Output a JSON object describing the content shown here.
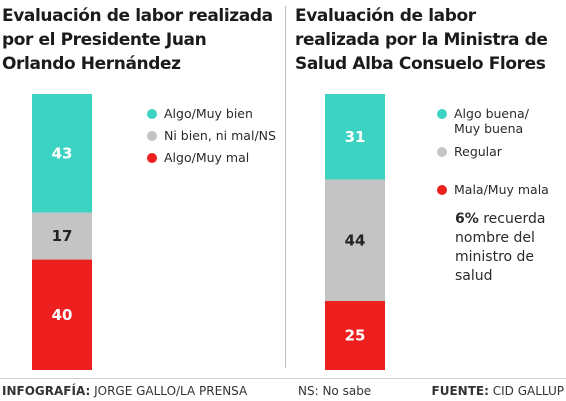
{
  "chart_data": [
    {
      "type": "bar",
      "stacked": true,
      "title": "Evaluación de labor realizada por el Presidente Juan Orlando Hernández",
      "categories": [
        ""
      ],
      "series": [
        {
          "name": "Algo/Muy bien",
          "values": [
            43
          ],
          "color": "#3dd3c2"
        },
        {
          "name": "Ni bien, ni mal/NS",
          "values": [
            17
          ],
          "color": "#c4c4c4"
        },
        {
          "name": "Algo/Muy mal",
          "values": [
            40
          ],
          "color": "#ee1f1f"
        }
      ],
      "ylim": [
        0,
        100
      ],
      "legend": "right"
    },
    {
      "type": "bar",
      "stacked": true,
      "title": "Evaluación de labor realizada por la Ministra de Salud Alba Consuelo Flores",
      "categories": [
        ""
      ],
      "series": [
        {
          "name": "Algo buena/ Muy buena",
          "values": [
            31
          ],
          "color": "#3dd3c2"
        },
        {
          "name": "Regular",
          "values": [
            44
          ],
          "color": "#c4c4c4"
        },
        {
          "name": "Mala/Muy mala",
          "values": [
            25
          ],
          "color": "#ee1f1f"
        }
      ],
      "ylim": [
        0,
        100
      ],
      "legend": "right"
    }
  ],
  "note": {
    "value": "6%",
    "text": "recuerda nombre del ministro de salud"
  },
  "footer": {
    "credit_label": "INFOGRAFÍA:",
    "credit_value": "JORGE GALLO/LA PRENSA",
    "ns_note": "NS: No sabe",
    "source_label": "FUENTE:",
    "source_value": "CID GALLUP"
  }
}
